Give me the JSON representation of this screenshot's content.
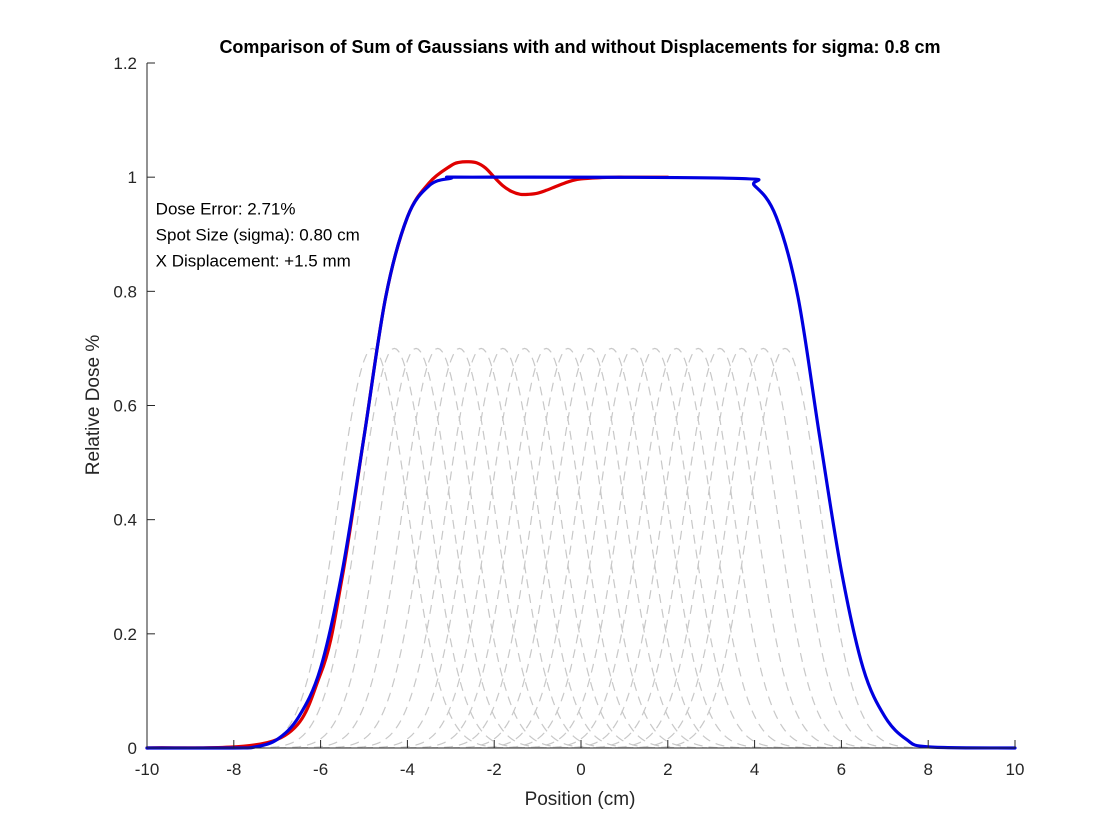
{
  "chart_data": {
    "type": "line",
    "title": "Comparison of Sum of Gaussians with and without Displacements for sigma: 0.8 cm",
    "xlabel": "Position (cm)",
    "ylabel": "Relative Dose %",
    "xlim": [
      -10,
      10
    ],
    "ylim": [
      0,
      1.2
    ],
    "x_ticks": [
      "-10",
      "-8",
      "-6",
      "-4",
      "-2",
      "0",
      "2",
      "4",
      "6",
      "8",
      "10"
    ],
    "y_ticks": [
      "0",
      "0.2",
      "0.4",
      "0.6",
      "0.8",
      "1",
      "1.2"
    ],
    "x_tick_values": [
      -10,
      -8,
      -6,
      -4,
      -2,
      0,
      2,
      4,
      6,
      8,
      10
    ],
    "y_tick_values": [
      0,
      0.2,
      0.4,
      0.6,
      0.8,
      1,
      1.2
    ],
    "grid": false,
    "annotations": [
      "Dose Error: 2.71%",
      "Spot Size (sigma): 0.80 cm",
      "X Displacement: +1.5 mm"
    ],
    "annotation_anchor": {
      "x": -9.8,
      "y": 0.935
    },
    "spots": {
      "amplitude": 0.7,
      "sigma": 0.8,
      "centers": [
        -4.8,
        -4.3,
        -3.8,
        -3.3,
        -2.8,
        -2.3,
        -1.8,
        -1.3,
        -0.8,
        -0.3,
        0.2,
        0.7,
        1.2,
        1.7,
        2.2,
        2.7,
        3.2,
        3.7,
        4.2,
        4.7
      ],
      "color": "#c8c8c8",
      "style": "dashed"
    },
    "series": [
      {
        "color": "#e00000",
        "x": [
          -10,
          -7,
          -6,
          -5.5,
          -5,
          -4.5,
          -4,
          -3.5,
          -3,
          -2.8,
          -2.6,
          -2.4,
          -2.2,
          -2,
          -1.8,
          -1.6,
          -1.4,
          -1.2,
          -1,
          -0.8,
          -0.6,
          -0.4,
          -0.2,
          0,
          0.4,
          0.8,
          1,
          1.5,
          2
        ],
        "y": [
          0,
          0.015,
          0.13,
          0.3,
          0.545,
          0.79,
          0.93,
          0.99,
          1.02,
          1.026,
          1.027,
          1.025,
          1.016,
          1.0,
          0.985,
          0.975,
          0.97,
          0.97,
          0.972,
          0.977,
          0.983,
          0.989,
          0.994,
          0.997,
          0.999,
          1.0,
          1.0,
          1.0,
          1.0
        ]
      },
      {
        "color": "#0000e0",
        "x": [
          -10,
          -8,
          -7.5,
          -7,
          -6.5,
          -6,
          -5.5,
          -5,
          -4.5,
          -4,
          -3.5,
          -3,
          -2.5,
          3.5,
          4,
          4.5,
          5,
          5.5,
          6,
          6.5,
          7,
          7.5,
          8,
          10
        ],
        "y": [
          0,
          0,
          0.002,
          0.015,
          0.055,
          0.14,
          0.31,
          0.545,
          0.79,
          0.93,
          0.985,
          0.998,
          1.0,
          0.998,
          0.985,
          0.93,
          0.79,
          0.545,
          0.31,
          0.14,
          0.055,
          0.015,
          0.002,
          0
        ]
      }
    ]
  }
}
